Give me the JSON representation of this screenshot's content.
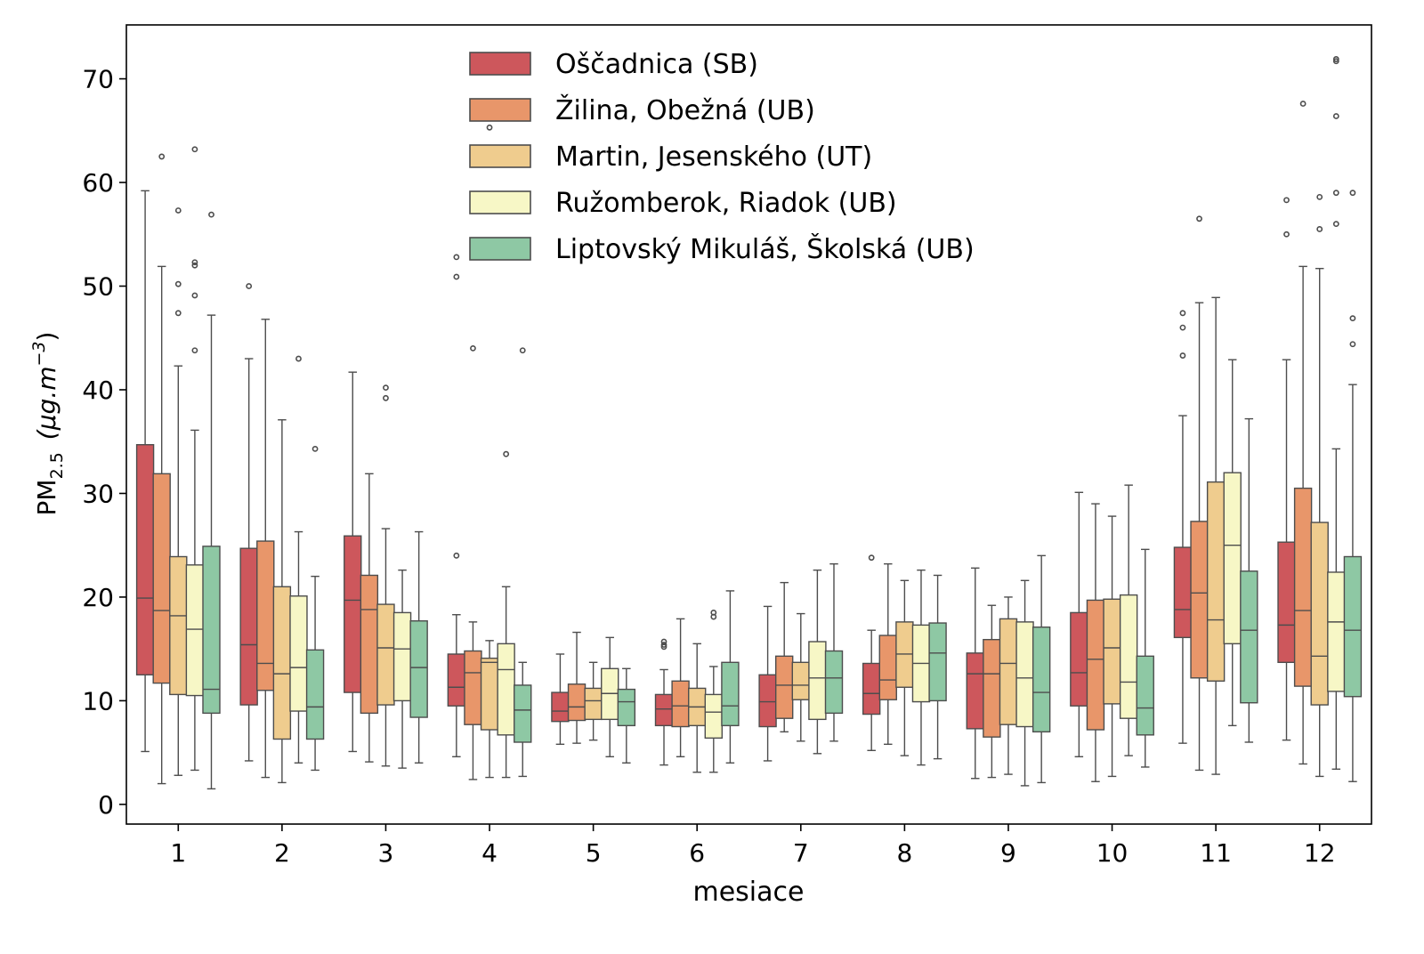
{
  "chart_data": {
    "type": "box",
    "title": "",
    "xlabel": "mesiace",
    "ylabel_main": "PM",
    "ylabel_sub": "2.5",
    "ylabel_unit": "(μg.m",
    "ylabel_exp": "−3",
    "ylabel_close": ")",
    "ylim": [
      -1.9,
      75.2
    ],
    "yticks": [
      0,
      10,
      20,
      30,
      40,
      50,
      60,
      70
    ],
    "categories": [
      "1",
      "2",
      "3",
      "4",
      "5",
      "6",
      "7",
      "8",
      "9",
      "10",
      "11",
      "12"
    ],
    "legend_position": "top-center",
    "series": [
      {
        "name": "Oščadnica (SB)",
        "color": "#cd575c",
        "boxes": [
          {
            "whislo": 5.1,
            "q1": 12.5,
            "med": 19.9,
            "q3": 34.7,
            "whishi": 59.2,
            "fliers": []
          },
          {
            "whislo": 4.2,
            "q1": 9.6,
            "med": 15.4,
            "q3": 24.7,
            "whishi": 43.0,
            "fliers": [
              50.0
            ]
          },
          {
            "whislo": 5.1,
            "q1": 10.8,
            "med": 19.7,
            "q3": 25.9,
            "whishi": 41.7,
            "fliers": []
          },
          {
            "whislo": 4.6,
            "q1": 9.5,
            "med": 11.3,
            "q3": 14.5,
            "whishi": 18.3,
            "fliers": [
              52.8,
              50.9,
              24.0
            ]
          },
          {
            "whislo": 5.8,
            "q1": 8.0,
            "med": 9.0,
            "q3": 10.8,
            "whishi": 14.5,
            "fliers": []
          },
          {
            "whislo": 3.8,
            "q1": 7.6,
            "med": 9.2,
            "q3": 10.6,
            "whishi": 13.0,
            "fliers": [
              15.7,
              15.4,
              15.2
            ]
          },
          {
            "whislo": 4.2,
            "q1": 7.5,
            "med": 9.9,
            "q3": 12.5,
            "whishi": 19.1,
            "fliers": []
          },
          {
            "whislo": 5.2,
            "q1": 8.7,
            "med": 10.7,
            "q3": 13.6,
            "whishi": 16.8,
            "fliers": [
              23.8
            ]
          },
          {
            "whislo": 2.5,
            "q1": 7.3,
            "med": 12.6,
            "q3": 14.6,
            "whishi": 22.8,
            "fliers": []
          },
          {
            "whislo": 4.6,
            "q1": 9.5,
            "med": 12.7,
            "q3": 18.5,
            "whishi": 30.1,
            "fliers": []
          },
          {
            "whislo": 5.9,
            "q1": 16.1,
            "med": 18.8,
            "q3": 24.8,
            "whishi": 37.5,
            "fliers": [
              47.4,
              46.0,
              43.3
            ]
          },
          {
            "whislo": 6.2,
            "q1": 13.7,
            "med": 17.3,
            "q3": 25.3,
            "whishi": 42.9,
            "fliers": [
              58.3,
              55.0
            ]
          }
        ]
      },
      {
        "name": "Žilina, Obežná (UB)",
        "color": "#e8966a",
        "boxes": [
          {
            "whislo": 2.0,
            "q1": 11.7,
            "med": 18.7,
            "q3": 31.9,
            "whishi": 51.9,
            "fliers": [
              62.5
            ]
          },
          {
            "whislo": 2.6,
            "q1": 11.0,
            "med": 13.6,
            "q3": 25.4,
            "whishi": 46.8,
            "fliers": []
          },
          {
            "whislo": 4.1,
            "q1": 8.8,
            "med": 18.8,
            "q3": 22.1,
            "whishi": 31.9,
            "fliers": []
          },
          {
            "whislo": 2.4,
            "q1": 7.7,
            "med": 12.7,
            "q3": 14.8,
            "whishi": 17.6,
            "fliers": [
              44.0
            ]
          },
          {
            "whislo": 5.9,
            "q1": 8.1,
            "med": 9.4,
            "q3": 11.6,
            "whishi": 16.6,
            "fliers": []
          },
          {
            "whislo": 4.6,
            "q1": 7.5,
            "med": 9.5,
            "q3": 11.9,
            "whishi": 17.9,
            "fliers": []
          },
          {
            "whislo": 7.0,
            "q1": 8.3,
            "med": 11.5,
            "q3": 14.3,
            "whishi": 21.4,
            "fliers": []
          },
          {
            "whislo": 5.8,
            "q1": 10.1,
            "med": 12.0,
            "q3": 16.3,
            "whishi": 23.2,
            "fliers": []
          },
          {
            "whislo": 2.6,
            "q1": 6.5,
            "med": 12.6,
            "q3": 15.9,
            "whishi": 19.2,
            "fliers": []
          },
          {
            "whislo": 2.2,
            "q1": 7.2,
            "med": 14.0,
            "q3": 19.7,
            "whishi": 29.0,
            "fliers": []
          },
          {
            "whislo": 3.3,
            "q1": 12.2,
            "med": 20.4,
            "q3": 27.3,
            "whishi": 48.4,
            "fliers": [
              56.5
            ]
          },
          {
            "whislo": 3.9,
            "q1": 11.4,
            "med": 18.7,
            "q3": 30.5,
            "whishi": 51.9,
            "fliers": [
              67.6
            ]
          }
        ]
      },
      {
        "name": "Martin, Jesenského (UT)",
        "color": "#efcc8e",
        "boxes": [
          {
            "whislo": 2.8,
            "q1": 10.6,
            "med": 18.2,
            "q3": 23.9,
            "whishi": 42.3,
            "fliers": [
              57.3,
              50.2,
              47.4
            ]
          },
          {
            "whislo": 2.1,
            "q1": 6.3,
            "med": 12.6,
            "q3": 21.0,
            "whishi": 37.1,
            "fliers": []
          },
          {
            "whislo": 3.7,
            "q1": 9.6,
            "med": 15.1,
            "q3": 19.3,
            "whishi": 26.6,
            "fliers": [
              40.2,
              39.2
            ]
          },
          {
            "whislo": 2.6,
            "q1": 7.2,
            "med": 13.7,
            "q3": 14.1,
            "whishi": 15.8,
            "fliers": [
              65.3
            ]
          },
          {
            "whislo": 6.2,
            "q1": 8.2,
            "med": 10.0,
            "q3": 11.2,
            "whishi": 13.7,
            "fliers": []
          },
          {
            "whislo": 3.1,
            "q1": 7.6,
            "med": 9.4,
            "q3": 11.2,
            "whishi": 15.5,
            "fliers": []
          },
          {
            "whislo": 6.1,
            "q1": 10.1,
            "med": 11.5,
            "q3": 13.7,
            "whishi": 18.4,
            "fliers": []
          },
          {
            "whislo": 4.7,
            "q1": 11.3,
            "med": 14.5,
            "q3": 17.6,
            "whishi": 21.6,
            "fliers": []
          },
          {
            "whislo": 2.9,
            "q1": 7.7,
            "med": 13.6,
            "q3": 17.9,
            "whishi": 20.0,
            "fliers": []
          },
          {
            "whislo": 2.7,
            "q1": 9.7,
            "med": 15.1,
            "q3": 19.8,
            "whishi": 27.8,
            "fliers": []
          },
          {
            "whislo": 2.9,
            "q1": 11.9,
            "med": 17.8,
            "q3": 31.1,
            "whishi": 48.9,
            "fliers": []
          },
          {
            "whislo": 2.7,
            "q1": 9.6,
            "med": 14.3,
            "q3": 27.2,
            "whishi": 51.7,
            "fliers": [
              58.6,
              55.5
            ]
          }
        ]
      },
      {
        "name": "Ružomberok, Riadok (UB)",
        "color": "#f7f7c6",
        "boxes": [
          {
            "whislo": 3.3,
            "q1": 10.5,
            "med": 16.9,
            "q3": 23.1,
            "whishi": 36.1,
            "fliers": [
              63.2,
              52.3,
              52.0,
              49.1,
              43.8
            ]
          },
          {
            "whislo": 4.0,
            "q1": 9.0,
            "med": 13.2,
            "q3": 20.1,
            "whishi": 26.3,
            "fliers": [
              43.0
            ]
          },
          {
            "whislo": 3.5,
            "q1": 10.0,
            "med": 15.0,
            "q3": 18.5,
            "whishi": 22.6,
            "fliers": []
          },
          {
            "whislo": 2.6,
            "q1": 6.7,
            "med": 13.0,
            "q3": 15.5,
            "whishi": 21.0,
            "fliers": [
              33.8
            ]
          },
          {
            "whislo": 4.6,
            "q1": 8.2,
            "med": 10.7,
            "q3": 13.1,
            "whishi": 16.1,
            "fliers": []
          },
          {
            "whislo": 3.1,
            "q1": 6.4,
            "med": 8.9,
            "q3": 10.6,
            "whishi": 13.3,
            "fliers": [
              18.5,
              18.1
            ]
          },
          {
            "whislo": 4.9,
            "q1": 8.2,
            "med": 12.2,
            "q3": 15.7,
            "whishi": 22.6,
            "fliers": []
          },
          {
            "whislo": 3.8,
            "q1": 9.9,
            "med": 13.6,
            "q3": 17.3,
            "whishi": 22.6,
            "fliers": []
          },
          {
            "whislo": 1.8,
            "q1": 7.5,
            "med": 12.2,
            "q3": 17.6,
            "whishi": 21.6,
            "fliers": []
          },
          {
            "whislo": 4.7,
            "q1": 8.3,
            "med": 11.8,
            "q3": 20.2,
            "whishi": 30.8,
            "fliers": []
          },
          {
            "whislo": 7.6,
            "q1": 15.5,
            "med": 25.0,
            "q3": 32.0,
            "whishi": 42.9,
            "fliers": []
          },
          {
            "whislo": 3.4,
            "q1": 10.9,
            "med": 17.6,
            "q3": 22.4,
            "whishi": 34.3,
            "fliers": [
              71.9,
              71.7,
              66.4,
              59.0,
              56.0
            ]
          }
        ]
      },
      {
        "name": "Liptovský Mikuláš, Školská (UB)",
        "color": "#8ec8a4",
        "boxes": [
          {
            "whislo": 1.5,
            "q1": 8.8,
            "med": 11.1,
            "q3": 24.9,
            "whishi": 47.2,
            "fliers": [
              56.9
            ]
          },
          {
            "whislo": 3.3,
            "q1": 6.3,
            "med": 9.4,
            "q3": 14.9,
            "whishi": 22.0,
            "fliers": [
              34.3
            ]
          },
          {
            "whislo": 4.0,
            "q1": 8.4,
            "med": 13.2,
            "q3": 17.7,
            "whishi": 26.3,
            "fliers": []
          },
          {
            "whislo": 2.7,
            "q1": 6.0,
            "med": 9.1,
            "q3": 11.5,
            "whishi": 13.7,
            "fliers": [
              43.8
            ]
          },
          {
            "whislo": 4.0,
            "q1": 7.6,
            "med": 9.9,
            "q3": 11.1,
            "whishi": 13.1,
            "fliers": []
          },
          {
            "whislo": 4.0,
            "q1": 7.6,
            "med": 9.5,
            "q3": 13.7,
            "whishi": 20.6,
            "fliers": []
          },
          {
            "whislo": 6.1,
            "q1": 8.8,
            "med": 12.2,
            "q3": 14.8,
            "whishi": 23.2,
            "fliers": []
          },
          {
            "whislo": 4.4,
            "q1": 10.0,
            "med": 14.6,
            "q3": 17.5,
            "whishi": 22.1,
            "fliers": []
          },
          {
            "whislo": 2.1,
            "q1": 7.0,
            "med": 10.8,
            "q3": 17.1,
            "whishi": 24.0,
            "fliers": []
          },
          {
            "whislo": 3.6,
            "q1": 6.7,
            "med": 9.3,
            "q3": 14.3,
            "whishi": 24.6,
            "fliers": []
          },
          {
            "whislo": 6.0,
            "q1": 9.8,
            "med": 16.8,
            "q3": 22.5,
            "whishi": 37.2,
            "fliers": []
          },
          {
            "whislo": 2.2,
            "q1": 10.4,
            "med": 16.8,
            "q3": 23.9,
            "whishi": 40.5,
            "fliers": [
              59.0,
              46.9,
              44.4
            ]
          }
        ]
      }
    ]
  }
}
